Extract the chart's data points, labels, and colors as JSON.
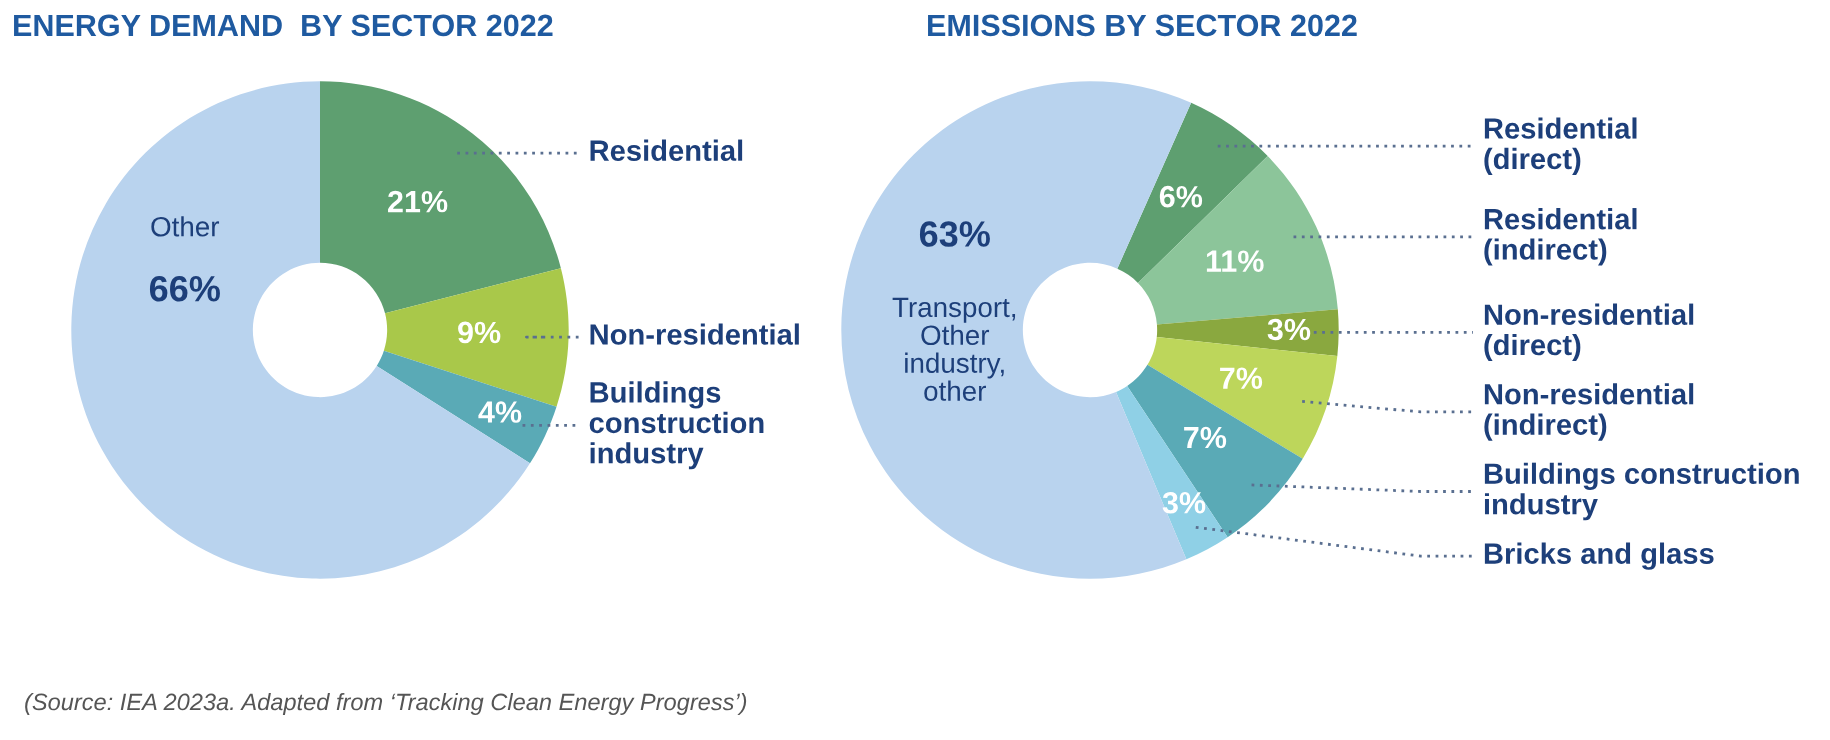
{
  "chart_data": [
    {
      "type": "donut",
      "title": "ENERGY DEMAND  BY SECTOR 2022",
      "categories": [
        "Residential",
        "Non-residential",
        "Buildings\nconstruction\nindustry",
        "Other"
      ],
      "values": [
        21,
        9,
        4,
        66
      ],
      "value_labels": [
        "21%",
        "9%",
        "4%",
        "66%"
      ],
      "colors": [
        "#5e9f70",
        "#a9c84a",
        "#5aaab6",
        "#b9d3ee"
      ],
      "annotations": [
        "(Source: IEA 2023a. Adapted from ‘Tracking Clean Energy Progress’)"
      ]
    },
    {
      "type": "donut",
      "title": "EMISSIONS BY SECTOR 2022",
      "categories": [
        "Residential\n(direct)",
        "Residential\n(indirect)",
        "Non-residential\n(direct)",
        "Non-residential\n(indirect)",
        "Buildings construction\nindustry",
        "Bricks and glass",
        "Transport,\nOther\nindustry,\nother"
      ],
      "values": [
        6,
        11,
        3,
        7,
        7,
        3,
        63
      ],
      "value_labels": [
        "6%",
        "11%",
        "3%",
        "7%",
        "7%",
        "3%",
        "63%"
      ],
      "colors": [
        "#5e9f70",
        "#8cc59a",
        "#8aa83f",
        "#bdd65b",
        "#5aaab6",
        "#8fd0e6",
        "#b9d3ee"
      ]
    }
  ]
}
